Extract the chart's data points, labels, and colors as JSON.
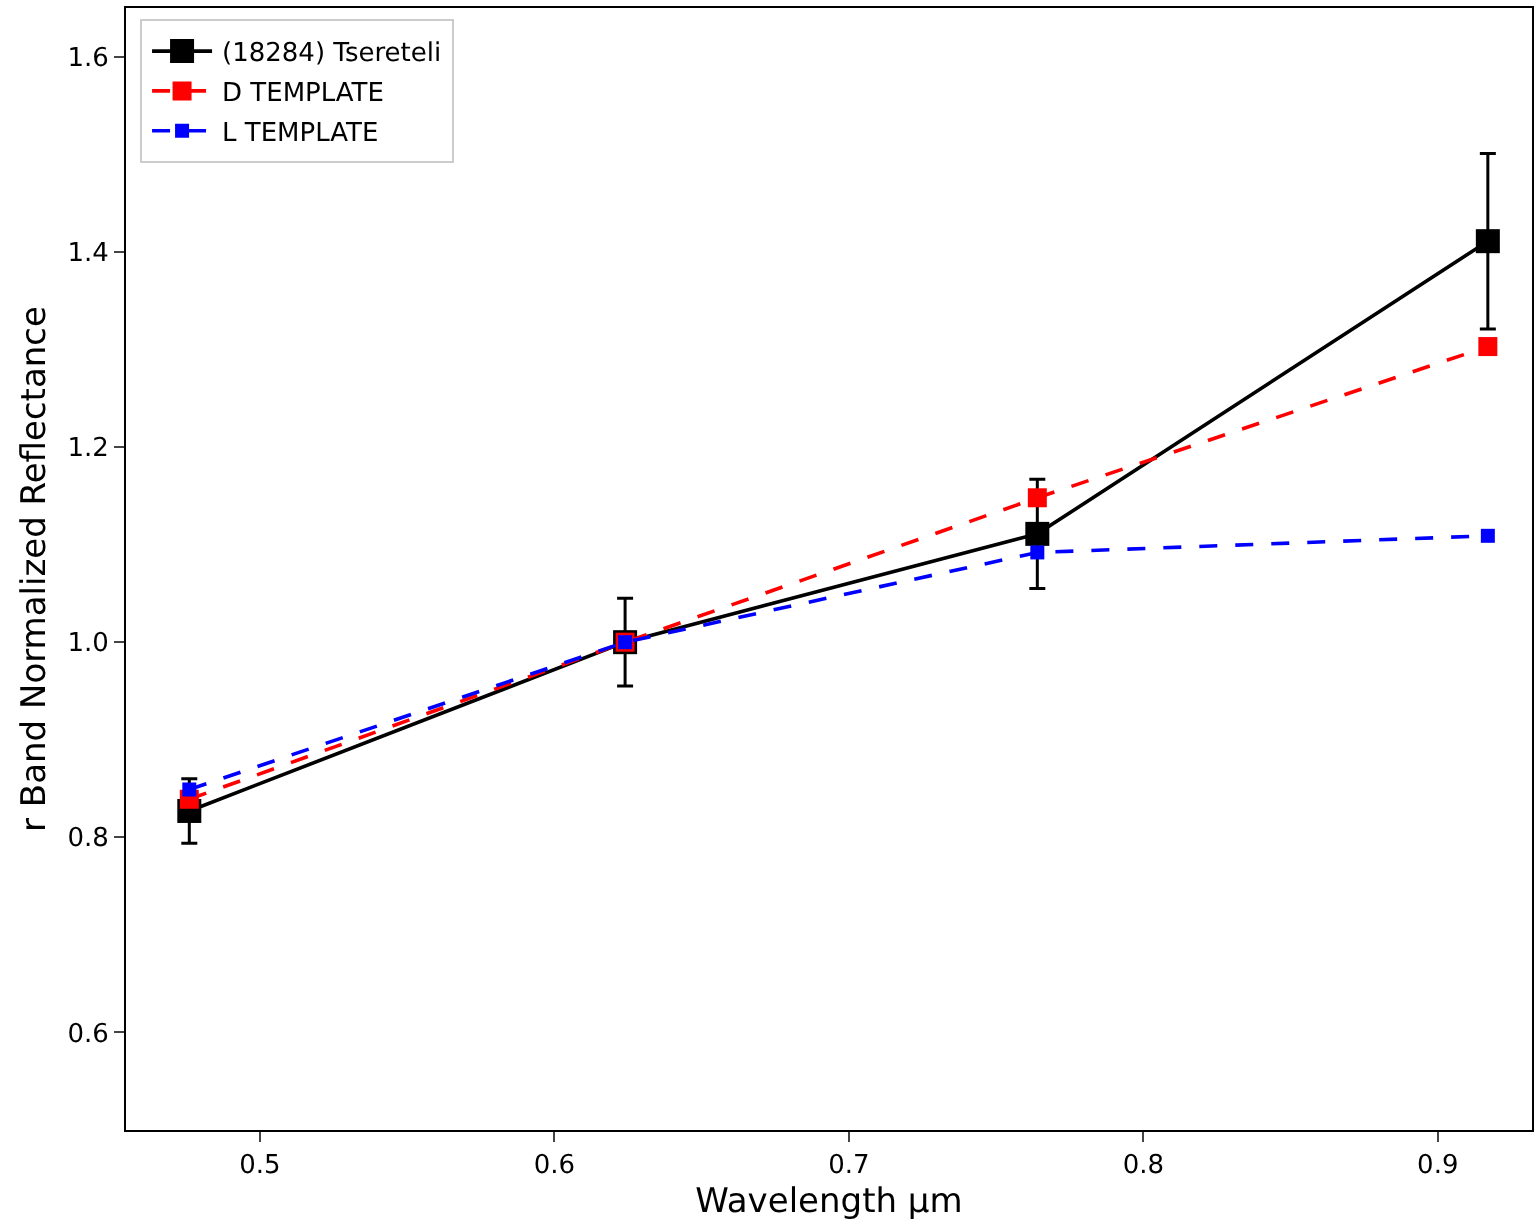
{
  "chart_data": {
    "type": "line",
    "xlabel": "Wavelength μm",
    "ylabel": "r Band Normalized Reflectance",
    "x": [
      0.476,
      0.624,
      0.764,
      0.917
    ],
    "series": [
      {
        "name": "(18284) Tsereteli",
        "color": "#000000",
        "values": [
          0.827,
          1.0,
          1.111,
          1.411
        ],
        "errors": [
          0.033,
          0.045,
          0.056,
          0.09
        ],
        "line_style": "solid"
      },
      {
        "name": "D TEMPLATE",
        "color": "#ff0000",
        "values": [
          0.839,
          1.0,
          1.148,
          1.303
        ],
        "line_style": "dashed"
      },
      {
        "name": "L TEMPLATE",
        "color": "#0000ff",
        "values": [
          0.849,
          1.0,
          1.092,
          1.109
        ],
        "line_style": "dashed"
      }
    ],
    "xlim": [
      0.4545,
      0.932
    ],
    "xticks": [
      0.5,
      0.6,
      0.7,
      0.8,
      0.9
    ],
    "ylim": [
      0.5,
      1.65
    ],
    "yticks": [
      0.6,
      0.8,
      {
        "value": 1,
        "label": "1.0"
      },
      1.2,
      1.4,
      1.6
    ],
    "marker": "square",
    "legend": "top left"
  }
}
